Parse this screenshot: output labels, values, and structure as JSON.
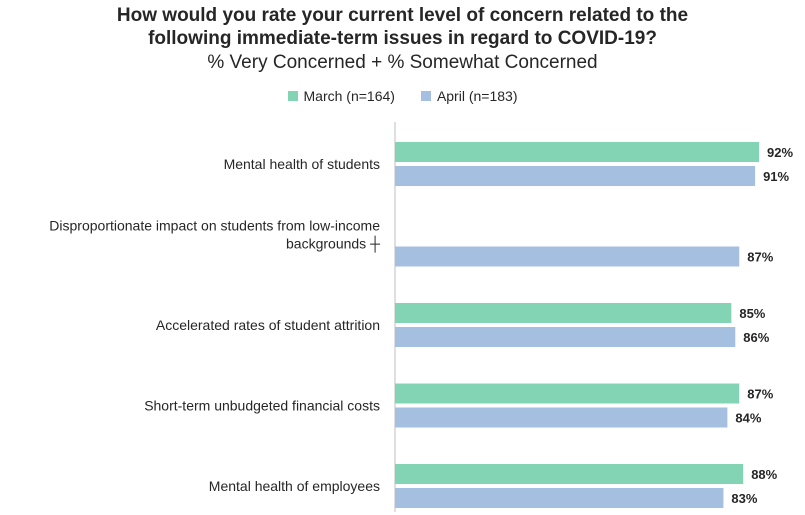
{
  "chart_data": {
    "type": "bar",
    "orientation": "horizontal",
    "title": "How would you rate your current level of concern related to the following immediate-term issues in regard to COVID-19?",
    "subtitle": "% Very Concerned + % Somewhat Concerned",
    "categories": [
      [
        "Mental health of students"
      ],
      [
        "Disproportionate impact on students from low-income",
        "backgrounds ┼"
      ],
      [
        "Accelerated rates of student attrition"
      ],
      [
        "Short-term unbudgeted financial costs"
      ],
      [
        "Mental health of employees"
      ]
    ],
    "series": [
      {
        "name": "March (n=164)",
        "color": "#82d4b5",
        "values": [
          92,
          null,
          85,
          87,
          88
        ]
      },
      {
        "name": "April (n=183)",
        "color": "#a5bfe0",
        "values": [
          91,
          87,
          86,
          84,
          83
        ]
      }
    ],
    "value_suffix": "%",
    "xlim": [
      0,
      100
    ],
    "grid": false,
    "legend_position": "top"
  }
}
